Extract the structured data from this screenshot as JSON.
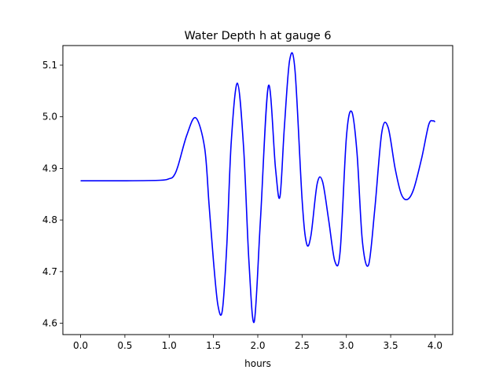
{
  "chart_data": {
    "type": "line",
    "title": "Water Depth h at gauge 6",
    "xlabel": "hours",
    "ylabel": "",
    "xlim": [
      -0.2,
      4.2
    ],
    "ylim": [
      4.578,
      5.138
    ],
    "xticks": [
      "0.0",
      "0.5",
      "1.0",
      "1.5",
      "2.0",
      "2.5",
      "3.0",
      "3.5",
      "4.0"
    ],
    "yticks": [
      "4.6",
      "4.7",
      "4.8",
      "4.9",
      "5.0",
      "5.1"
    ],
    "grid": false,
    "legend": "none",
    "series": [
      {
        "color": "#0000ff",
        "x": [
          0.0,
          0.5,
          0.9,
          1.0,
          1.05,
          1.1,
          1.2,
          1.3,
          1.4,
          1.45,
          1.5,
          1.55,
          1.6,
          1.65,
          1.7,
          1.77,
          1.84,
          1.9,
          1.96,
          2.03,
          2.12,
          2.2,
          2.25,
          2.3,
          2.36,
          2.42,
          2.5,
          2.55,
          2.6,
          2.67,
          2.73,
          2.8,
          2.87,
          2.93,
          3.0,
          3.06,
          3.12,
          3.18,
          3.25,
          3.32,
          3.4,
          3.47,
          3.55,
          3.62,
          3.69,
          3.76,
          3.85,
          3.93,
          3.98,
          4.0
        ],
        "y": [
          4.876,
          4.876,
          4.877,
          4.88,
          4.885,
          4.905,
          4.965,
          4.998,
          4.94,
          4.83,
          4.72,
          4.635,
          4.625,
          4.75,
          4.95,
          5.065,
          4.94,
          4.72,
          4.603,
          4.8,
          5.06,
          4.9,
          4.845,
          4.98,
          5.11,
          5.09,
          4.84,
          4.755,
          4.77,
          4.87,
          4.875,
          4.8,
          4.72,
          4.74,
          4.96,
          5.01,
          4.93,
          4.76,
          4.713,
          4.82,
          4.97,
          4.98,
          4.9,
          4.85,
          4.84,
          4.86,
          4.92,
          4.985,
          4.992,
          4.99
        ]
      }
    ]
  }
}
